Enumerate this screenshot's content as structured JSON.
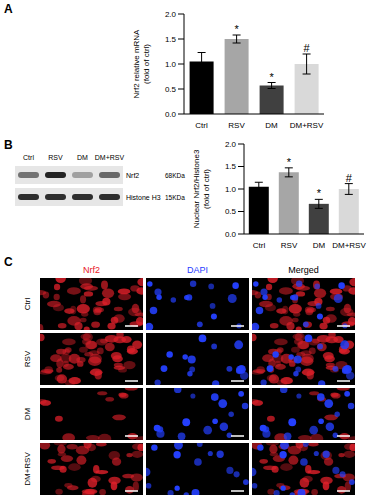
{
  "panel_labels": [
    "A",
    "B",
    "C"
  ],
  "chart_data": [
    {
      "type": "bar",
      "y_label": "Nrf2 relative mRNA\n(fold of ctrl)",
      "categories": [
        "Ctrl",
        "RSV",
        "DM",
        "DM+RSV"
      ],
      "values": [
        1.05,
        1.5,
        0.57,
        1.0
      ],
      "errors": [
        0.18,
        0.08,
        0.06,
        0.2
      ],
      "annotations": [
        null,
        "*",
        "*",
        "#"
      ],
      "colors": [
        "#000000",
        "#a6a6a6",
        "#404040",
        "#d9d9d9"
      ],
      "ylim": [
        0,
        2
      ],
      "yticks": [
        {
          "value": 0,
          "label": "0.0"
        },
        0.5,
        {
          "value": 1,
          "label": "1.0"
        },
        1.5,
        {
          "value": 2,
          "label": "2.0"
        }
      ]
    },
    {
      "type": "bar",
      "y_label": "Nuclear Nrf2/Histone3\n(fold of ctrl)",
      "categories": [
        "Ctrl",
        "RSV",
        "DM",
        "DM+RSV"
      ],
      "values": [
        1.05,
        1.37,
        0.67,
        1.0
      ],
      "errors": [
        0.1,
        0.1,
        0.1,
        0.12
      ],
      "annotations": [
        null,
        "*",
        "*",
        "#"
      ],
      "colors": [
        "#000000",
        "#a6a6a6",
        "#404040",
        "#d9d9d9"
      ],
      "ylim": [
        0,
        2
      ],
      "yticks": [
        {
          "value": 0,
          "label": "0.0"
        },
        0.5,
        {
          "value": 1,
          "label": "1.0"
        },
        1.5,
        {
          "value": 2,
          "label": "2.0"
        }
      ]
    }
  ],
  "blot": {
    "lanes": [
      "Ctrl",
      "RSV",
      "DM",
      "DM+RSV"
    ],
    "bands": [
      {
        "name": "Nrf2",
        "size": "68KDa"
      },
      {
        "name": "Histone H3",
        "size": "15KDa"
      }
    ]
  },
  "images": {
    "rows": [
      "Ctrl",
      "RSV",
      "DM",
      "DM+RSV"
    ],
    "columns": [
      {
        "name": "Nrf2",
        "color": "#e8141e"
      },
      {
        "name": "DAPI",
        "color": "#1f3cff"
      },
      {
        "name": "Merged"
      }
    ]
  }
}
